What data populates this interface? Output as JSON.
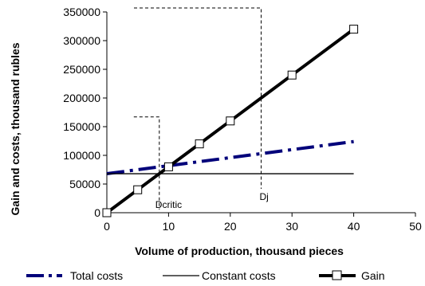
{
  "chart_data": {
    "type": "line",
    "xlabel": "Volume of production, thousand pieces",
    "ylabel": "Gain and costs, thousand rubles",
    "xlim": [
      0,
      50
    ],
    "ylim": [
      0,
      350000
    ],
    "x_ticks": [
      0,
      10,
      20,
      30,
      40,
      50
    ],
    "y_ticks": [
      0,
      50000,
      100000,
      150000,
      200000,
      250000,
      300000,
      350000
    ],
    "grid": false,
    "legend_position": "bottom",
    "series": [
      {
        "name": "Total costs",
        "style": "dash-dot",
        "color": "#00007a",
        "x": [
          0,
          40
        ],
        "y": [
          68000,
          124000
        ]
      },
      {
        "name": "Constant costs",
        "style": "solid-thin",
        "color": "#000000",
        "x": [
          0,
          40
        ],
        "y": [
          68000,
          68000
        ]
      },
      {
        "name": "Gain",
        "style": "solid-thick-square-markers",
        "color": "#000000",
        "x": [
          0,
          5,
          10,
          15,
          20,
          30,
          40
        ],
        "y": [
          0,
          40000,
          80000,
          120000,
          160000,
          240000,
          320000
        ]
      }
    ],
    "annotations": [
      {
        "label": "Dcritic",
        "x": 8.5,
        "y_top": 167000
      },
      {
        "label": "Dj",
        "x": 25,
        "y_top": 357000
      }
    ]
  }
}
